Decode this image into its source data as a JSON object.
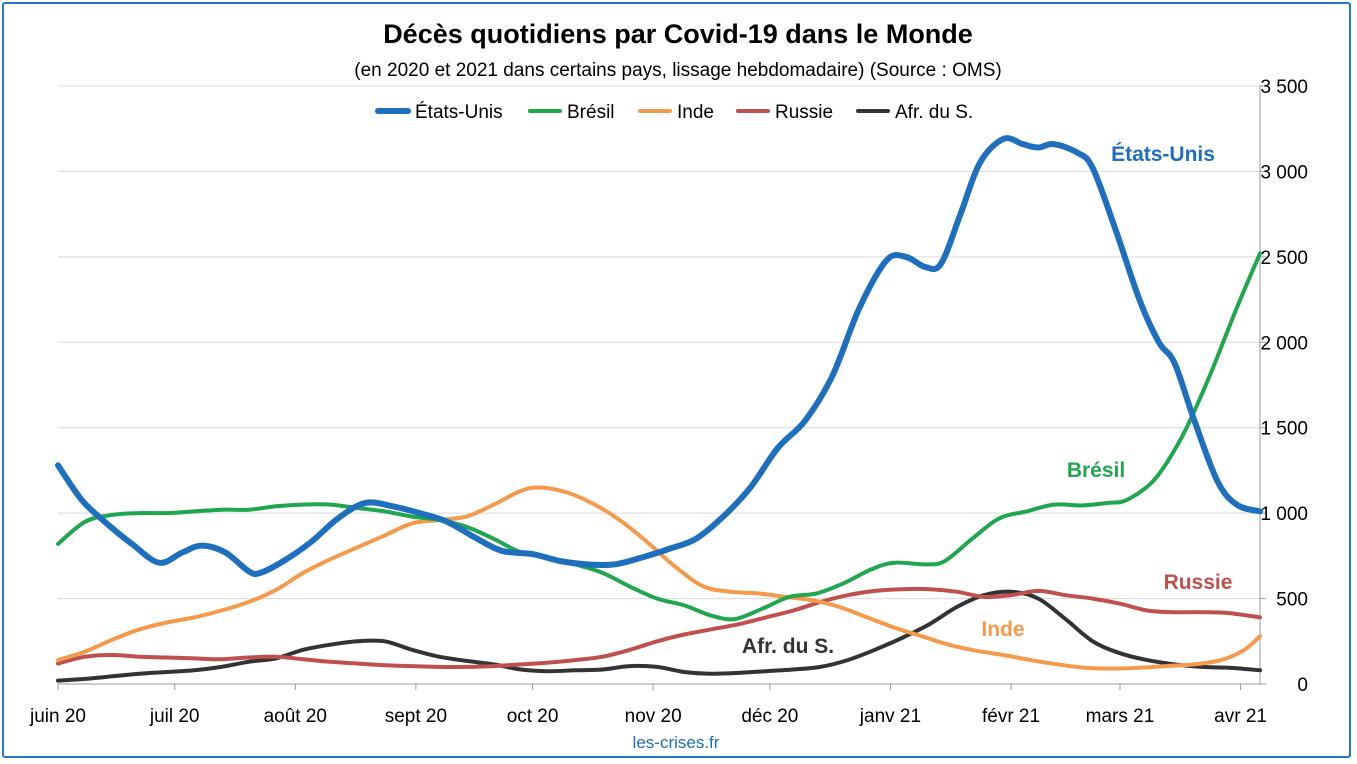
{
  "chart_data": {
    "type": "line",
    "title": "Décès quotidiens par Covid-19 dans le Monde",
    "subtitle": "(en 2020 et 2021 dans certains pays, lissage hebdomadaire) (Source : OMS)",
    "source_credit": "les-crises.fr",
    "x_ticks": [
      "juin 20",
      "juil 20",
      "août 20",
      "sept 20",
      "oct 20",
      "nov 20",
      "déc 20",
      "janv 21",
      "févr 21",
      "mars 21",
      "avr 21"
    ],
    "x_tick_dates": [
      "2020-06-01",
      "2020-07-01",
      "2020-08-01",
      "2020-09-01",
      "2020-10-01",
      "2020-11-01",
      "2020-12-01",
      "2021-01-01",
      "2021-02-01",
      "2021-03-01",
      "2021-04-01"
    ],
    "x_range": [
      "2020-06-01",
      "2021-04-06"
    ],
    "y_axis_side": "right",
    "ylim": [
      0,
      3500
    ],
    "y_ticks": [
      0,
      500,
      1000,
      1500,
      2000,
      2500,
      3000,
      3500
    ],
    "y_tick_labels": [
      "0",
      "500",
      "1 000",
      "1 500",
      "2 000",
      "2 500",
      "3 000",
      "3 500"
    ],
    "grid": true,
    "legend_position": "top",
    "series": [
      {
        "name": "États-Unis",
        "color": "#1f6fbf",
        "annotation": "États-Unis",
        "points": [
          [
            "2020-06-01",
            1280
          ],
          [
            "2020-06-07",
            1080
          ],
          [
            "2020-06-13",
            950
          ],
          [
            "2020-06-20",
            820
          ],
          [
            "2020-06-27",
            710
          ],
          [
            "2020-07-03",
            770
          ],
          [
            "2020-07-08",
            810
          ],
          [
            "2020-07-14",
            770
          ],
          [
            "2020-07-20",
            660
          ],
          [
            "2020-07-23",
            650
          ],
          [
            "2020-07-29",
            720
          ],
          [
            "2020-08-05",
            830
          ],
          [
            "2020-08-12",
            970
          ],
          [
            "2020-08-19",
            1060
          ],
          [
            "2020-08-26",
            1040
          ],
          [
            "2020-09-02",
            1000
          ],
          [
            "2020-09-09",
            950
          ],
          [
            "2020-09-16",
            860
          ],
          [
            "2020-09-23",
            780
          ],
          [
            "2020-10-01",
            760
          ],
          [
            "2020-10-08",
            720
          ],
          [
            "2020-10-15",
            700
          ],
          [
            "2020-10-22",
            700
          ],
          [
            "2020-10-29",
            740
          ],
          [
            "2020-11-05",
            790
          ],
          [
            "2020-11-12",
            850
          ],
          [
            "2020-11-19",
            980
          ],
          [
            "2020-11-26",
            1150
          ],
          [
            "2020-12-03",
            1380
          ],
          [
            "2020-12-10",
            1540
          ],
          [
            "2020-12-17",
            1800
          ],
          [
            "2020-12-24",
            2200
          ],
          [
            "2020-12-31",
            2480
          ],
          [
            "2021-01-05",
            2500
          ],
          [
            "2021-01-10",
            2440
          ],
          [
            "2021-01-14",
            2460
          ],
          [
            "2021-01-19",
            2750
          ],
          [
            "2021-01-24",
            3050
          ],
          [
            "2021-01-30",
            3190
          ],
          [
            "2021-02-04",
            3160
          ],
          [
            "2021-02-08",
            3140
          ],
          [
            "2021-02-12",
            3160
          ],
          [
            "2021-02-18",
            3110
          ],
          [
            "2021-02-22",
            3020
          ],
          [
            "2021-02-28",
            2650
          ],
          [
            "2021-03-06",
            2250
          ],
          [
            "2021-03-11",
            2000
          ],
          [
            "2021-03-15",
            1880
          ],
          [
            "2021-03-20",
            1550
          ],
          [
            "2021-03-26",
            1190
          ],
          [
            "2021-03-31",
            1050
          ],
          [
            "2021-04-06",
            1010
          ]
        ]
      },
      {
        "name": "Brésil",
        "color": "#1fa64e",
        "annotation": "Brésil",
        "points": [
          [
            "2020-06-01",
            820
          ],
          [
            "2020-06-08",
            950
          ],
          [
            "2020-06-15",
            990
          ],
          [
            "2020-06-22",
            1000
          ],
          [
            "2020-06-29",
            1000
          ],
          [
            "2020-07-06",
            1010
          ],
          [
            "2020-07-13",
            1020
          ],
          [
            "2020-07-20",
            1020
          ],
          [
            "2020-07-27",
            1040
          ],
          [
            "2020-08-03",
            1050
          ],
          [
            "2020-08-10",
            1050
          ],
          [
            "2020-08-17",
            1030
          ],
          [
            "2020-08-24",
            1010
          ],
          [
            "2020-08-31",
            980
          ],
          [
            "2020-09-07",
            960
          ],
          [
            "2020-09-14",
            920
          ],
          [
            "2020-09-21",
            850
          ],
          [
            "2020-09-28",
            770
          ],
          [
            "2020-10-05",
            740
          ],
          [
            "2020-10-12",
            700
          ],
          [
            "2020-10-19",
            650
          ],
          [
            "2020-10-26",
            570
          ],
          [
            "2020-11-02",
            500
          ],
          [
            "2020-11-09",
            460
          ],
          [
            "2020-11-16",
            400
          ],
          [
            "2020-11-22",
            380
          ],
          [
            "2020-11-29",
            440
          ],
          [
            "2020-12-06",
            510
          ],
          [
            "2020-12-13",
            530
          ],
          [
            "2020-12-20",
            590
          ],
          [
            "2020-12-27",
            670
          ],
          [
            "2021-01-02",
            710
          ],
          [
            "2021-01-10",
            700
          ],
          [
            "2021-01-15",
            720
          ],
          [
            "2021-01-22",
            850
          ],
          [
            "2021-01-29",
            970
          ],
          [
            "2021-02-05",
            1010
          ],
          [
            "2021-02-12",
            1050
          ],
          [
            "2021-02-19",
            1045
          ],
          [
            "2021-02-26",
            1060
          ],
          [
            "2021-03-03",
            1080
          ],
          [
            "2021-03-10",
            1200
          ],
          [
            "2021-03-17",
            1450
          ],
          [
            "2021-03-24",
            1800
          ],
          [
            "2021-03-31",
            2200
          ],
          [
            "2021-04-06",
            2520
          ]
        ]
      },
      {
        "name": "Inde",
        "color": "#f49a4a",
        "annotation": "Inde",
        "points": [
          [
            "2020-06-01",
            140
          ],
          [
            "2020-06-08",
            190
          ],
          [
            "2020-06-15",
            260
          ],
          [
            "2020-06-22",
            320
          ],
          [
            "2020-06-29",
            360
          ],
          [
            "2020-07-06",
            390
          ],
          [
            "2020-07-13",
            430
          ],
          [
            "2020-07-20",
            480
          ],
          [
            "2020-07-27",
            550
          ],
          [
            "2020-08-03",
            650
          ],
          [
            "2020-08-10",
            730
          ],
          [
            "2020-08-17",
            800
          ],
          [
            "2020-08-24",
            870
          ],
          [
            "2020-08-31",
            940
          ],
          [
            "2020-09-07",
            960
          ],
          [
            "2020-09-14",
            980
          ],
          [
            "2020-09-21",
            1050
          ],
          [
            "2020-09-28",
            1130
          ],
          [
            "2020-10-03",
            1150
          ],
          [
            "2020-10-10",
            1120
          ],
          [
            "2020-10-17",
            1050
          ],
          [
            "2020-10-24",
            950
          ],
          [
            "2020-10-31",
            820
          ],
          [
            "2020-11-07",
            680
          ],
          [
            "2020-11-14",
            570
          ],
          [
            "2020-11-21",
            540
          ],
          [
            "2020-11-28",
            530
          ],
          [
            "2020-12-05",
            510
          ],
          [
            "2020-12-12",
            490
          ],
          [
            "2020-12-19",
            450
          ],
          [
            "2020-12-26",
            390
          ],
          [
            "2021-01-02",
            330
          ],
          [
            "2021-01-09",
            280
          ],
          [
            "2021-01-16",
            230
          ],
          [
            "2021-01-23",
            195
          ],
          [
            "2021-01-30",
            170
          ],
          [
            "2021-02-06",
            140
          ],
          [
            "2021-02-13",
            115
          ],
          [
            "2021-02-20",
            95
          ],
          [
            "2021-02-27",
            90
          ],
          [
            "2021-03-06",
            95
          ],
          [
            "2021-03-13",
            105
          ],
          [
            "2021-03-20",
            115
          ],
          [
            "2021-03-27",
            140
          ],
          [
            "2021-04-02",
            200
          ],
          [
            "2021-04-06",
            280
          ]
        ]
      },
      {
        "name": "Russie",
        "color": "#c0504d",
        "annotation": "Russie",
        "points": [
          [
            "2020-06-01",
            120
          ],
          [
            "2020-06-08",
            160
          ],
          [
            "2020-06-15",
            170
          ],
          [
            "2020-06-22",
            160
          ],
          [
            "2020-06-29",
            155
          ],
          [
            "2020-07-06",
            150
          ],
          [
            "2020-07-13",
            145
          ],
          [
            "2020-07-20",
            155
          ],
          [
            "2020-07-27",
            160
          ],
          [
            "2020-08-03",
            145
          ],
          [
            "2020-08-10",
            130
          ],
          [
            "2020-08-17",
            120
          ],
          [
            "2020-08-24",
            110
          ],
          [
            "2020-08-31",
            105
          ],
          [
            "2020-09-07",
            100
          ],
          [
            "2020-09-14",
            100
          ],
          [
            "2020-09-21",
            105
          ],
          [
            "2020-09-28",
            115
          ],
          [
            "2020-10-05",
            125
          ],
          [
            "2020-10-12",
            140
          ],
          [
            "2020-10-19",
            160
          ],
          [
            "2020-10-26",
            200
          ],
          [
            "2020-11-02",
            250
          ],
          [
            "2020-11-09",
            290
          ],
          [
            "2020-11-16",
            320
          ],
          [
            "2020-11-23",
            350
          ],
          [
            "2020-11-30",
            390
          ],
          [
            "2020-12-07",
            430
          ],
          [
            "2020-12-14",
            480
          ],
          [
            "2020-12-21",
            520
          ],
          [
            "2020-12-28",
            545
          ],
          [
            "2021-01-04",
            555
          ],
          [
            "2021-01-11",
            555
          ],
          [
            "2021-01-18",
            540
          ],
          [
            "2021-01-25",
            510
          ],
          [
            "2021-02-01",
            520
          ],
          [
            "2021-02-08",
            545
          ],
          [
            "2021-02-15",
            520
          ],
          [
            "2021-02-22",
            500
          ],
          [
            "2021-03-01",
            470
          ],
          [
            "2021-03-08",
            430
          ],
          [
            "2021-03-15",
            420
          ],
          [
            "2021-03-22",
            420
          ],
          [
            "2021-03-29",
            415
          ],
          [
            "2021-04-06",
            390
          ]
        ]
      },
      {
        "name": "Afr. du S.",
        "color": "#333333",
        "annotation": "Afr. du S.",
        "points": [
          [
            "2020-06-01",
            20
          ],
          [
            "2020-06-08",
            30
          ],
          [
            "2020-06-15",
            45
          ],
          [
            "2020-06-22",
            60
          ],
          [
            "2020-06-29",
            70
          ],
          [
            "2020-07-06",
            80
          ],
          [
            "2020-07-13",
            100
          ],
          [
            "2020-07-20",
            130
          ],
          [
            "2020-07-27",
            150
          ],
          [
            "2020-08-03",
            200
          ],
          [
            "2020-08-10",
            230
          ],
          [
            "2020-08-17",
            250
          ],
          [
            "2020-08-24",
            250
          ],
          [
            "2020-08-31",
            200
          ],
          [
            "2020-09-07",
            160
          ],
          [
            "2020-09-14",
            135
          ],
          [
            "2020-09-21",
            115
          ],
          [
            "2020-09-28",
            85
          ],
          [
            "2020-10-05",
            75
          ],
          [
            "2020-10-12",
            80
          ],
          [
            "2020-10-19",
            85
          ],
          [
            "2020-10-26",
            105
          ],
          [
            "2020-11-02",
            100
          ],
          [
            "2020-11-09",
            70
          ],
          [
            "2020-11-16",
            60
          ],
          [
            "2020-11-23",
            65
          ],
          [
            "2020-11-30",
            75
          ],
          [
            "2020-12-07",
            85
          ],
          [
            "2020-12-14",
            100
          ],
          [
            "2020-12-21",
            140
          ],
          [
            "2020-12-28",
            200
          ],
          [
            "2021-01-04",
            270
          ],
          [
            "2021-01-11",
            350
          ],
          [
            "2021-01-18",
            450
          ],
          [
            "2021-01-25",
            520
          ],
          [
            "2021-02-01",
            540
          ],
          [
            "2021-02-08",
            500
          ],
          [
            "2021-02-15",
            380
          ],
          [
            "2021-02-22",
            250
          ],
          [
            "2021-03-01",
            180
          ],
          [
            "2021-03-08",
            140
          ],
          [
            "2021-03-15",
            115
          ],
          [
            "2021-03-22",
            100
          ],
          [
            "2021-03-29",
            95
          ],
          [
            "2021-04-06",
            80
          ]
        ]
      }
    ]
  }
}
